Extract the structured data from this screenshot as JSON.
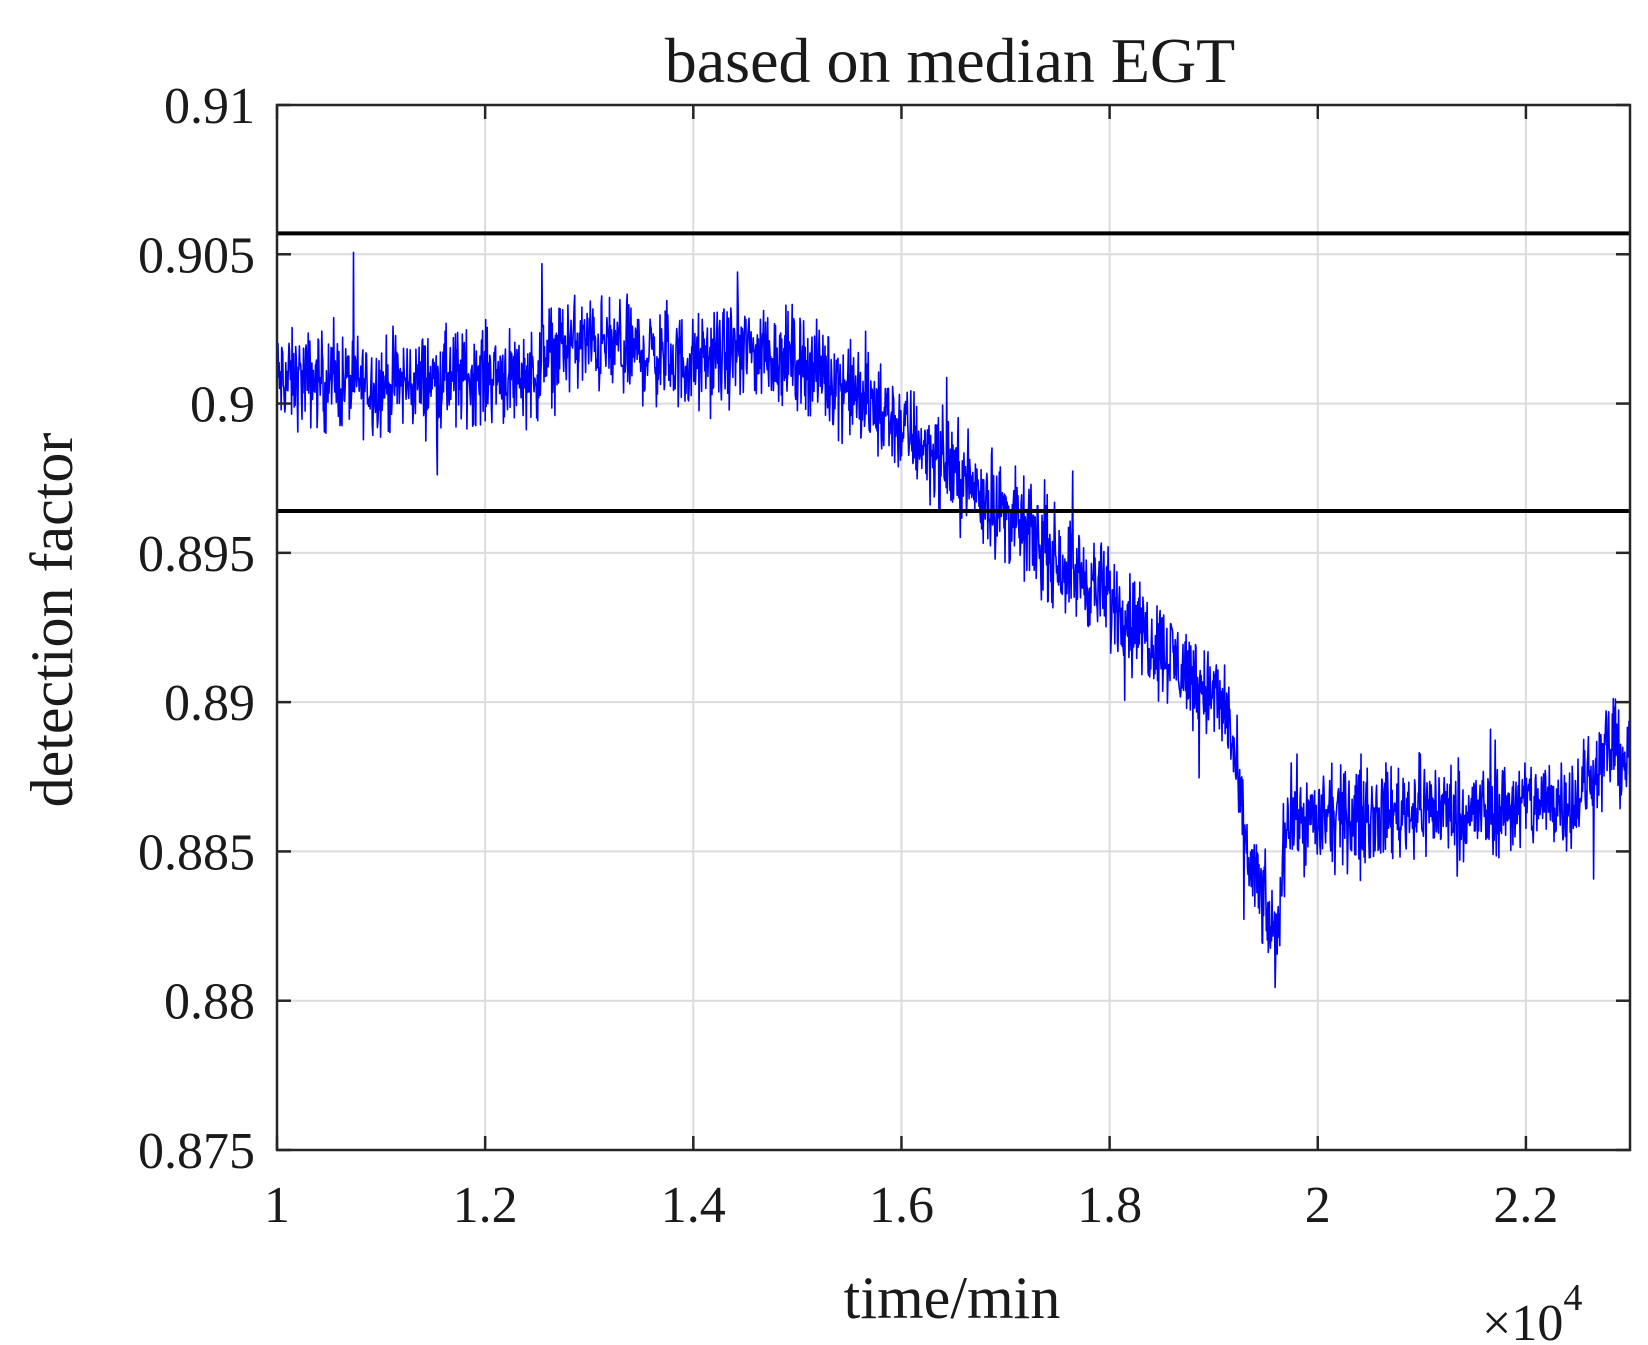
{
  "chart_data": {
    "type": "line",
    "title": "based on median EGT",
    "xlabel": "time/min",
    "ylabel": "detection factor",
    "x_exponent_label": "×10",
    "x_exponent_power": "4",
    "xlim": [
      1,
      2.3
    ],
    "ylim": [
      0.875,
      0.91
    ],
    "x_ticks": [
      1,
      1.2,
      1.4,
      1.6,
      1.8,
      2,
      2.2
    ],
    "x_tick_labels": [
      "1",
      "1.2",
      "1.4",
      "1.6",
      "1.8",
      "2",
      "2.2"
    ],
    "y_ticks": [
      0.875,
      0.88,
      0.885,
      0.89,
      0.895,
      0.9,
      0.905,
      0.91
    ],
    "y_tick_labels": [
      "0.875",
      "0.88",
      "0.885",
      "0.89",
      "0.895",
      "0.9",
      "0.905",
      "0.91"
    ],
    "grid": true,
    "legend": "none",
    "colors": {
      "series": "#0000ff",
      "threshold": "#000000",
      "grid": "#dcdcdc",
      "axis": "#262626"
    },
    "thresholds": [
      {
        "y": 0.9057
      },
      {
        "y": 0.8964
      }
    ],
    "series": [
      {
        "x": [
          1.0,
          1.05,
          1.1,
          1.15,
          1.2,
          1.25,
          1.265,
          1.28,
          1.3,
          1.35,
          1.4,
          1.45,
          1.5,
          1.55,
          1.6,
          1.65,
          1.7,
          1.75,
          1.8,
          1.85,
          1.9,
          1.915,
          1.93,
          1.95,
          1.96,
          1.97,
          2.0,
          2.05,
          2.1,
          2.15,
          2.2,
          2.25,
          2.28,
          2.3
        ],
        "y": [
          0.9008,
          0.9008,
          0.9006,
          0.9008,
          0.901,
          0.901,
          0.9018,
          0.902,
          0.902,
          0.9017,
          0.9013,
          0.9018,
          0.9015,
          0.9005,
          0.8992,
          0.8978,
          0.8963,
          0.8948,
          0.8935,
          0.8918,
          0.8902,
          0.8895,
          0.8852,
          0.883,
          0.8818,
          0.8862,
          0.886,
          0.8862,
          0.8865,
          0.8863,
          0.8866,
          0.8868,
          0.8885,
          0.888
        ],
        "noise_amplitude": 0.0012
      }
    ]
  }
}
